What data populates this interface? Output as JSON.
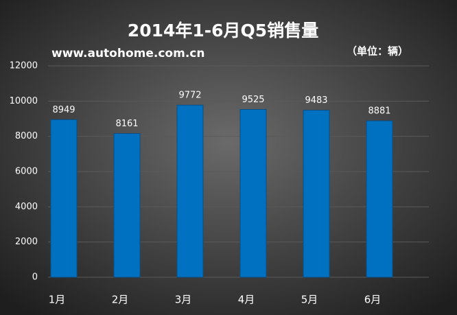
{
  "chart_data": {
    "type": "bar",
    "title": "2014年1-6月Q5销售量",
    "subtitle": "www.autohome.com.cn",
    "unit_label": "（单位：辆）",
    "categories": [
      "1月",
      "2月",
      "3月",
      "4月",
      "5月",
      "6月"
    ],
    "values": [
      8949,
      8161,
      9772,
      9525,
      9483,
      8881
    ],
    "color": "#0070c0",
    "ylim": [
      0,
      12000
    ],
    "yticks": [
      0,
      2000,
      4000,
      6000,
      8000,
      10000,
      12000
    ],
    "grid": true
  }
}
